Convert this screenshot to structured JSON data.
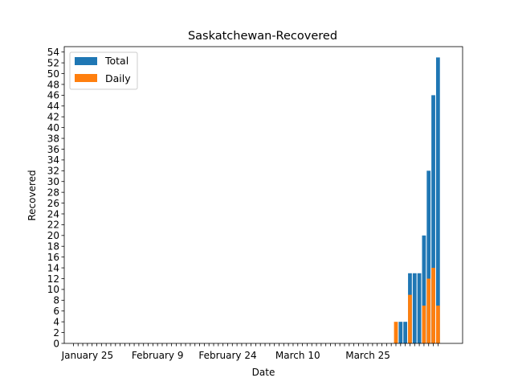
{
  "chart_data": {
    "type": "bar",
    "stacked_overlay": true,
    "title": "Saskatchewan-Recovered",
    "xlabel": "Date",
    "ylabel": "Recovered",
    "ylim": [
      0,
      55
    ],
    "y_ticks": [
      0,
      2,
      4,
      6,
      8,
      10,
      12,
      14,
      16,
      18,
      20,
      22,
      24,
      26,
      28,
      30,
      32,
      34,
      36,
      38,
      40,
      42,
      44,
      46,
      48,
      50,
      52,
      54
    ],
    "x_tick_labels": [
      {
        "index": 3,
        "label": "January 25"
      },
      {
        "index": 18,
        "label": "February 9"
      },
      {
        "index": 33,
        "label": "February 24"
      },
      {
        "index": 48,
        "label": "March 10"
      },
      {
        "index": 63,
        "label": "March 25"
      }
    ],
    "num_days": 79,
    "first_date": "January 22",
    "legend": {
      "position": "top-left",
      "entries": [
        "Total",
        "Daily"
      ]
    },
    "colors": {
      "Total": "#1f77b4",
      "Daily": "#ff7f0e"
    },
    "series": [
      {
        "name": "Total",
        "values": [
          0,
          0,
          0,
          0,
          0,
          0,
          0,
          0,
          0,
          0,
          0,
          0,
          0,
          0,
          0,
          0,
          0,
          0,
          0,
          0,
          0,
          0,
          0,
          0,
          0,
          0,
          0,
          0,
          0,
          0,
          0,
          0,
          0,
          0,
          0,
          0,
          0,
          0,
          0,
          0,
          0,
          0,
          0,
          0,
          0,
          0,
          0,
          0,
          0,
          0,
          0,
          0,
          0,
          0,
          0,
          0,
          0,
          0,
          0,
          0,
          0,
          0,
          0,
          0,
          0,
          0,
          0,
          0,
          0,
          0,
          4,
          4,
          13,
          13,
          13,
          20,
          32,
          46,
          53
        ]
      },
      {
        "name": "Daily",
        "values": [
          0,
          0,
          0,
          0,
          0,
          0,
          0,
          0,
          0,
          0,
          0,
          0,
          0,
          0,
          0,
          0,
          0,
          0,
          0,
          0,
          0,
          0,
          0,
          0,
          0,
          0,
          0,
          0,
          0,
          0,
          0,
          0,
          0,
          0,
          0,
          0,
          0,
          0,
          0,
          0,
          0,
          0,
          0,
          0,
          0,
          0,
          0,
          0,
          0,
          0,
          0,
          0,
          0,
          0,
          0,
          0,
          0,
          0,
          0,
          0,
          0,
          0,
          0,
          0,
          0,
          0,
          0,
          0,
          0,
          4,
          0,
          0,
          9,
          0,
          0,
          7,
          12,
          14,
          7
        ]
      }
    ]
  }
}
